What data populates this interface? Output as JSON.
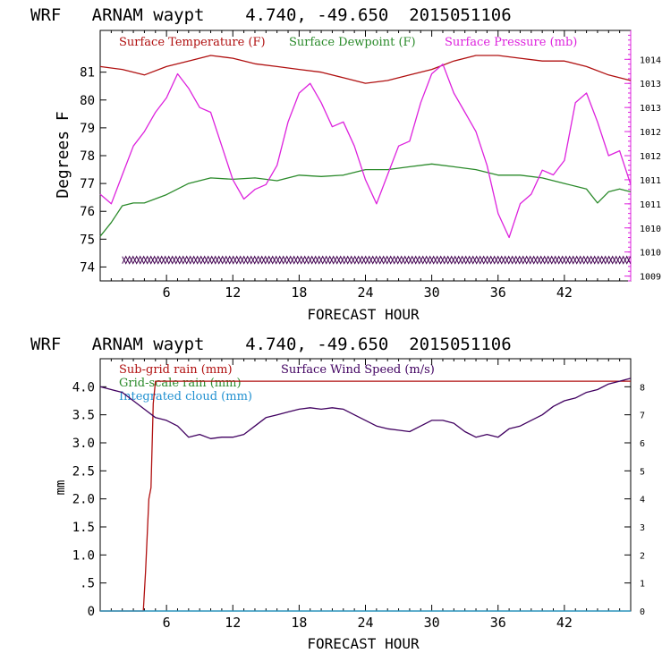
{
  "chart_data": [
    {
      "type": "line",
      "title": "WRF   ARNAM waypt    4.740, -49.650  2015051106",
      "xlabel": "FORECAST HOUR",
      "ylabel": "Degrees F",
      "xlim": [
        0,
        48
      ],
      "ylim": [
        73.5,
        82.5
      ],
      "x_ticks": [
        6,
        12,
        18,
        24,
        30,
        36,
        42
      ],
      "y_ticks": [
        74,
        75,
        76,
        77,
        78,
        79,
        80,
        81
      ],
      "y2lim": [
        1009.4,
        1014.6
      ],
      "y2_ticks": [
        "1009.5",
        "1010.0",
        "1010.5",
        "1011.0",
        "1011.5",
        "1012.0",
        "1012.5",
        "1013.0",
        "1013.5",
        "1014.0"
      ],
      "legend": [
        "Surface Temperature (F)",
        "Surface Dewpoint (F)",
        "Surface Pressure (mb)"
      ],
      "series": [
        {
          "name": "Surface Temperature (F)",
          "color": "#b01010",
          "axis": "left",
          "x": [
            0,
            2,
            4,
            6,
            8,
            10,
            12,
            14,
            16,
            18,
            20,
            22,
            24,
            26,
            28,
            30,
            32,
            34,
            36,
            38,
            40,
            42,
            44,
            46,
            48
          ],
          "values": [
            81.2,
            81.1,
            80.9,
            81.2,
            81.4,
            81.6,
            81.5,
            81.3,
            81.2,
            81.1,
            81.0,
            80.8,
            80.6,
            80.7,
            80.9,
            81.1,
            81.4,
            81.6,
            81.6,
            81.5,
            81.4,
            81.4,
            81.2,
            80.9,
            80.7
          ]
        },
        {
          "name": "Surface Dewpoint (F)",
          "color": "#2a8a2a",
          "axis": "left",
          "x": [
            0,
            1,
            2,
            3,
            4,
            6,
            8,
            10,
            12,
            14,
            16,
            18,
            20,
            22,
            24,
            26,
            28,
            30,
            32,
            34,
            36,
            38,
            40,
            42,
            44,
            45,
            46,
            47,
            48
          ],
          "values": [
            75.1,
            75.6,
            76.2,
            76.3,
            76.3,
            76.6,
            77.0,
            77.2,
            77.15,
            77.2,
            77.1,
            77.3,
            77.25,
            77.3,
            77.5,
            77.5,
            77.6,
            77.7,
            77.6,
            77.5,
            77.3,
            77.3,
            77.2,
            77.0,
            76.8,
            76.3,
            76.7,
            76.8,
            76.7
          ]
        },
        {
          "name": "Surface Pressure (mb)",
          "color": "#dd22dd",
          "axis": "right",
          "x": [
            0,
            1,
            2,
            3,
            4,
            5,
            6,
            7,
            8,
            9,
            10,
            11,
            12,
            13,
            14,
            15,
            16,
            17,
            18,
            19,
            20,
            21,
            22,
            23,
            24,
            25,
            26,
            27,
            28,
            29,
            30,
            31,
            32,
            33,
            34,
            35,
            36,
            37,
            38,
            39,
            40,
            41,
            42,
            43,
            44,
            45,
            46,
            47,
            48
          ],
          "values": [
            1011.2,
            1011.0,
            1011.6,
            1012.2,
            1012.5,
            1012.9,
            1013.2,
            1013.7,
            1013.4,
            1013.0,
            1012.9,
            1012.2,
            1011.5,
            1011.1,
            1011.3,
            1011.4,
            1011.8,
            1012.7,
            1013.3,
            1013.5,
            1013.1,
            1012.6,
            1012.7,
            1012.2,
            1011.5,
            1011.0,
            1011.6,
            1012.2,
            1012.3,
            1013.1,
            1013.7,
            1013.9,
            1013.3,
            1012.9,
            1012.5,
            1011.8,
            1010.8,
            1010.3,
            1011.0,
            1011.2,
            1011.7,
            1011.6,
            1011.9,
            1013.1,
            1013.3,
            1012.7,
            1012.0,
            1012.1,
            1011.4
          ]
        },
        {
          "name": "",
          "color": "#400050",
          "axis": "left",
          "style": "zigzag",
          "x": [
            2,
            48
          ],
          "values": [
            74.25,
            74.4
          ]
        }
      ]
    },
    {
      "type": "line",
      "title": "WRF   ARNAM waypt    4.740, -49.650  2015051106",
      "xlabel": "FORECAST HOUR",
      "ylabel": "mm",
      "xlim": [
        0,
        48
      ],
      "ylim": [
        0,
        4.5
      ],
      "x_ticks": [
        6,
        12,
        18,
        24,
        30,
        36,
        42
      ],
      "y_ticks": [
        "0",
        ".5",
        "1.0",
        "1.5",
        "2.0",
        "2.5",
        "3.0",
        "3.5",
        "4.0"
      ],
      "y_tick_values": [
        0,
        0.5,
        1,
        1.5,
        2,
        2.5,
        3,
        3.5,
        4
      ],
      "y2lim": [
        0,
        9
      ],
      "y2_ticks": [
        "0",
        "1",
        "2",
        "3",
        "4",
        "5",
        "6",
        "7",
        "8"
      ],
      "legend": [
        "Sub-grid rain (mm)",
        "Grid-scale rain (mm)",
        "Integrated cloud (mm)",
        "Surface Wind Speed (m/s)"
      ],
      "series": [
        {
          "name": "Sub-grid rain (mm)",
          "color": "#b01010",
          "axis": "left",
          "x": [
            0,
            3.9,
            4.1,
            4.4,
            4.6,
            4.8,
            5.0,
            48
          ],
          "values": [
            0,
            0,
            0.7,
            2.0,
            2.2,
            3.7,
            4.1,
            4.1
          ]
        },
        {
          "name": "Grid-scale rain (mm)",
          "color": "#2a8a2a",
          "axis": "left",
          "x": [
            0,
            48
          ],
          "values": [
            0,
            0
          ]
        },
        {
          "name": "Integrated cloud (mm)",
          "color": "#2090d0",
          "axis": "left",
          "x": [
            0,
            48
          ],
          "values": [
            0,
            0
          ]
        },
        {
          "name": "Surface Wind Speed (m/s)",
          "color": "#400060",
          "axis": "right",
          "x": [
            0,
            1,
            2,
            3,
            4,
            5,
            6,
            7,
            8,
            9,
            10,
            11,
            12,
            13,
            14,
            15,
            16,
            17,
            18,
            19,
            20,
            21,
            22,
            23,
            24,
            25,
            26,
            27,
            28,
            29,
            30,
            31,
            32,
            33,
            34,
            35,
            36,
            37,
            38,
            39,
            40,
            41,
            42,
            43,
            44,
            45,
            46,
            47,
            48
          ],
          "values": [
            8.0,
            7.9,
            7.8,
            7.5,
            7.2,
            6.9,
            6.8,
            6.6,
            6.2,
            6.3,
            6.15,
            6.2,
            6.2,
            6.3,
            6.6,
            6.9,
            7.0,
            7.1,
            7.2,
            7.25,
            7.2,
            7.25,
            7.2,
            7.0,
            6.8,
            6.6,
            6.5,
            6.45,
            6.4,
            6.6,
            6.8,
            6.8,
            6.7,
            6.4,
            6.2,
            6.3,
            6.2,
            6.5,
            6.6,
            6.8,
            7.0,
            7.3,
            7.5,
            7.6,
            7.8,
            7.9,
            8.1,
            8.2,
            8.3
          ]
        }
      ]
    }
  ]
}
